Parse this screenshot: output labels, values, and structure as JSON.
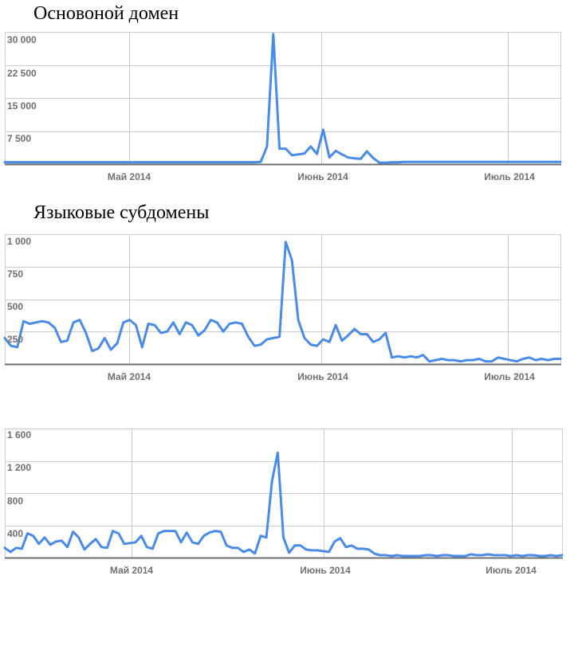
{
  "titles": [
    "Основоной домен",
    "Языковые субдомены",
    ""
  ],
  "colors": {
    "line": "#4a8be8",
    "grid": "#cccccc",
    "axis": "#707070",
    "tick_text": "#707070"
  },
  "chart_data": [
    {
      "type": "line",
      "title": "Основоной домен",
      "xlabel": "",
      "ylabel": "",
      "x_ticks": [
        "Май 2014",
        "Июнь 2014",
        "Июль 2014"
      ],
      "y_ticks": [
        "30 000",
        "22 500",
        "15 000",
        "7 500"
      ],
      "ylim": [
        0,
        30000
      ],
      "grid": true,
      "series": [
        {
          "values": [
            400,
            400,
            400,
            400,
            400,
            400,
            400,
            400,
            400,
            400,
            400,
            400,
            400,
            400,
            400,
            400,
            400,
            400,
            400,
            400,
            400,
            400,
            400,
            400,
            400,
            400,
            400,
            400,
            400,
            400,
            400,
            400,
            400,
            400,
            400,
            400,
            400,
            400,
            400,
            400,
            400,
            500,
            4000,
            29500,
            3500,
            3500,
            2000,
            2200,
            2400,
            4000,
            2300,
            7800,
            1500,
            3000,
            2200,
            1500,
            1300,
            1200,
            2900,
            1400,
            300,
            300,
            400,
            400,
            500,
            500,
            500,
            500,
            500,
            500,
            500,
            500,
            500,
            500,
            500,
            500,
            500,
            500,
            500,
            500,
            500,
            500,
            500,
            500,
            500,
            500,
            500,
            500,
            500,
            500
          ]
        }
      ]
    },
    {
      "type": "line",
      "title": "Языковые субдомены",
      "xlabel": "",
      "ylabel": "",
      "x_ticks": [
        "Май 2014",
        "Июнь 2014",
        "Июль 2014"
      ],
      "y_ticks": [
        "1 000",
        "750",
        "500",
        "250"
      ],
      "ylim": [
        0,
        1000
      ],
      "grid": true,
      "series": [
        {
          "values": [
            200,
            140,
            130,
            330,
            310,
            320,
            330,
            320,
            280,
            170,
            180,
            320,
            340,
            240,
            100,
            120,
            200,
            110,
            160,
            320,
            340,
            300,
            130,
            310,
            300,
            240,
            250,
            320,
            230,
            320,
            300,
            220,
            260,
            340,
            320,
            250,
            310,
            320,
            310,
            210,
            140,
            150,
            190,
            200,
            210,
            940,
            800,
            340,
            200,
            150,
            140,
            190,
            170,
            300,
            180,
            220,
            270,
            230,
            230,
            170,
            190,
            240,
            50,
            60,
            50,
            60,
            50,
            70,
            20,
            30,
            40,
            30,
            30,
            20,
            30,
            30,
            40,
            20,
            20,
            50,
            40,
            30,
            20,
            40,
            50,
            30,
            40,
            30,
            40,
            40
          ]
        }
      ]
    },
    {
      "type": "line",
      "title": "",
      "xlabel": "",
      "ylabel": "",
      "x_ticks": [
        "Май 2014",
        "Июнь 2014",
        "Июль 2014"
      ],
      "y_ticks": [
        "1 600",
        "1 200",
        "800",
        "400"
      ],
      "ylim": [
        0,
        1600
      ],
      "grid": true,
      "series": [
        {
          "values": [
            120,
            70,
            120,
            110,
            300,
            270,
            170,
            250,
            160,
            200,
            210,
            130,
            320,
            250,
            100,
            170,
            230,
            130,
            120,
            330,
            300,
            170,
            180,
            190,
            270,
            130,
            110,
            300,
            330,
            330,
            330,
            190,
            310,
            190,
            170,
            270,
            310,
            330,
            320,
            150,
            120,
            120,
            70,
            100,
            50,
            270,
            250,
            950,
            1300,
            250,
            60,
            150,
            150,
            100,
            90,
            90,
            80,
            70,
            200,
            240,
            130,
            150,
            110,
            110,
            100,
            50,
            30,
            30,
            20,
            30,
            20,
            20,
            20,
            20,
            30,
            30,
            20,
            30,
            30,
            20,
            20,
            20,
            40,
            30,
            30,
            40,
            30,
            30,
            30,
            20,
            30,
            20,
            30,
            30,
            20,
            20,
            30,
            20,
            30
          ]
        }
      ]
    }
  ]
}
